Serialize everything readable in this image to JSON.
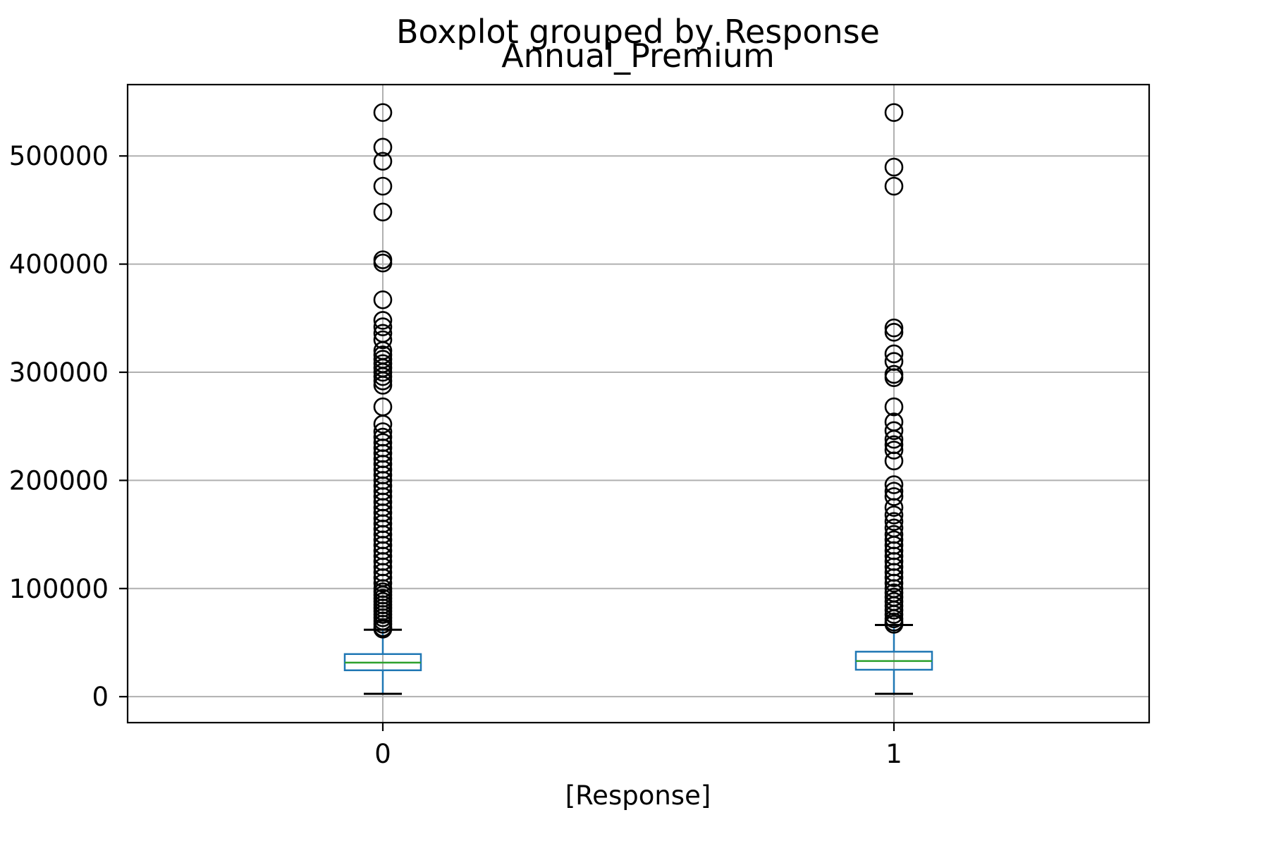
{
  "chart_data": {
    "type": "box",
    "suptitle": "Boxplot grouped by Response",
    "title": "Annual_Premium",
    "xlabel": "[Response]",
    "ylabel": "",
    "categories": [
      "0",
      "1"
    ],
    "ylim": [
      -24000,
      566000
    ],
    "yticks": [
      0,
      100000,
      200000,
      300000,
      400000,
      500000
    ],
    "ytick_labels": [
      "0",
      "100000",
      "200000",
      "300000",
      "400000",
      "500000"
    ],
    "grid": true,
    "colors": {
      "box": "#1f77b4",
      "median": "#2ca02c",
      "outlier": "#000000",
      "grid": "#b0b0b0",
      "cap": "#000000"
    },
    "boxes": [
      {
        "category": "0",
        "whislo": 2630,
        "q1": 24400,
        "median": 31500,
        "q3": 39400,
        "whishi": 61900,
        "outliers": [
          540165,
          508073,
          495106,
          472042,
          448156,
          404000,
          401000,
          367000,
          348000,
          342000,
          336000,
          330000,
          320000,
          316000,
          312000,
          308000,
          304000,
          300000,
          296000,
          292000,
          288000,
          268000,
          252000,
          245000,
          240000,
          235000,
          230000,
          225000,
          220000,
          215000,
          210000,
          205000,
          200000,
          195000,
          190000,
          185000,
          180000,
          175000,
          170000,
          165000,
          160000,
          155000,
          150000,
          145000,
          140000,
          135000,
          130000,
          125000,
          120000,
          115000,
          110000,
          105000,
          100000,
          97000,
          94000,
          91000,
          88000,
          85000,
          82000,
          79000,
          76000,
          73000,
          70000,
          67000,
          64000,
          62500
        ]
      },
      {
        "category": "1",
        "whislo": 2630,
        "q1": 24900,
        "median": 33000,
        "q3": 41600,
        "whishi": 66300,
        "outliers": [
          540165,
          489663,
          472042,
          341000,
          337000,
          317000,
          310000,
          298000,
          295000,
          268000,
          254000,
          246000,
          238000,
          233000,
          228000,
          218000,
          196000,
          190000,
          185000,
          175000,
          168000,
          162000,
          156000,
          150000,
          145000,
          140000,
          135000,
          130000,
          125000,
          120000,
          115000,
          110000,
          105000,
          100000,
          96000,
          92000,
          88000,
          84000,
          80000,
          76000,
          72000,
          69000,
          67000
        ]
      }
    ]
  }
}
